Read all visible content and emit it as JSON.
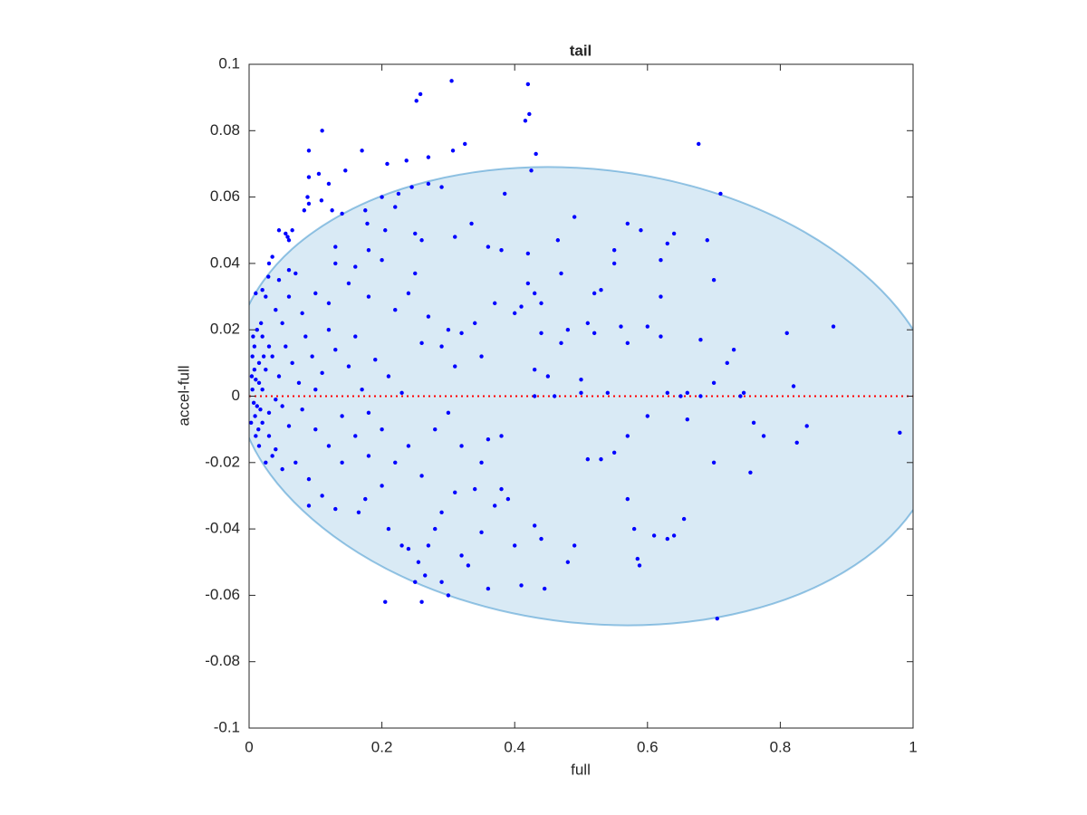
{
  "chart_data": {
    "type": "scatter",
    "title": "tail",
    "xlabel": "full",
    "ylabel": "accel-full",
    "xlim": [
      0,
      1
    ],
    "ylim": [
      -0.1,
      0.1
    ],
    "xticks": [
      0,
      0.2,
      0.4,
      0.6,
      0.8,
      1
    ],
    "yticks": [
      -0.1,
      -0.08,
      -0.06,
      -0.04,
      -0.02,
      0,
      0.02,
      0.04,
      0.06,
      0.08,
      0.1
    ],
    "region": {
      "color": "#0072bd",
      "x": [
        1.04,
        0.988,
        0.877,
        0.723,
        0.543,
        0.359,
        0.193,
        0.065,
        -0.009,
        -0.02,
        0.032,
        0.143,
        0.297,
        0.477,
        0.661,
        0.827,
        0.955,
        1.029
      ],
      "y": [
        0,
        0.0236,
        0.0444,
        0.0598,
        0.068,
        0.068,
        0.0598,
        0.0444,
        0.0236,
        0,
        -0.0236,
        -0.0444,
        -0.0598,
        -0.068,
        -0.068,
        -0.0598,
        -0.0444,
        -0.0236
      ]
    },
    "reference_line": {
      "y": 0,
      "color": "#ff0000"
    },
    "series": [
      {
        "color": "#0000ff",
        "x": [
          0.305,
          0.258,
          0.252,
          0.42,
          0.422,
          0.416,
          0.11,
          0.09,
          0.17,
          0.307,
          0.325,
          0.677,
          0.432,
          0.237,
          0.208,
          0.27,
          0.145,
          0.105,
          0.09,
          0.425,
          0.12,
          0.27,
          0.29,
          0.245,
          0.225,
          0.385,
          0.088,
          0.09,
          0.71,
          0.083,
          0.109,
          0.125,
          0.14,
          0.065,
          0.045,
          0.055,
          0.058,
          0.06,
          0.035,
          0.03,
          0.029,
          0.02,
          0.01,
          0.175,
          0.2,
          0.178,
          0.205,
          0.25,
          0.31,
          0.335,
          0.49,
          0.22,
          0.26,
          0.64,
          0.57,
          0.59,
          0.69,
          0.62,
          0.63,
          0.465,
          0.38,
          0.36,
          0.42,
          0.55,
          0.7,
          0.62,
          0.42,
          0.41,
          0.37,
          0.43,
          0.44,
          0.52,
          0.53,
          0.4,
          0.47,
          0.55,
          0.6,
          0.51,
          0.52,
          0.56,
          0.57,
          0.62,
          0.47,
          0.48,
          0.44,
          0.43,
          0.45,
          0.5,
          0.35,
          0.32,
          0.34,
          0.3,
          0.29,
          0.31,
          0.26,
          0.27,
          0.24,
          0.25,
          0.22,
          0.2,
          0.18,
          0.16,
          0.15,
          0.13,
          0.12,
          0.1,
          0.08,
          0.07,
          0.06,
          0.05,
          0.04,
          0.03,
          0.02,
          0.015,
          0.01,
          0.005,
          0.012,
          0.02,
          0.03,
          0.025,
          0.035,
          0.045,
          0.055,
          0.065,
          0.075,
          0.085,
          0.095,
          0.11,
          0.13,
          0.15,
          0.17,
          0.19,
          0.21,
          0.23,
          0.18,
          0.16,
          0.14,
          0.12,
          0.1,
          0.08,
          0.06,
          0.04,
          0.05,
          0.07,
          0.09,
          0.11,
          0.13,
          0.09,
          0.165,
          0.175,
          0.2,
          0.22,
          0.24,
          0.26,
          0.28,
          0.3,
          0.21,
          0.23,
          0.24,
          0.255,
          0.265,
          0.27,
          0.26,
          0.205,
          0.25,
          0.29,
          0.3,
          0.32,
          0.33,
          0.35,
          0.36,
          0.37,
          0.38,
          0.39,
          0.4,
          0.41,
          0.43,
          0.44,
          0.445,
          0.48,
          0.49,
          0.51,
          0.53,
          0.55,
          0.57,
          0.58,
          0.585,
          0.588,
          0.61,
          0.63,
          0.64,
          0.655,
          0.57,
          0.6,
          0.66,
          0.7,
          0.755,
          0.76,
          0.775,
          0.825,
          0.84,
          0.98,
          0.705,
          0.65,
          0.68,
          0.66,
          0.74,
          0.745,
          0.82,
          0.81,
          0.88,
          0.73,
          0.72,
          0.68,
          0.7,
          0.63,
          0.54,
          0.5,
          0.46,
          0.43,
          0.38,
          0.36,
          0.35,
          0.34,
          0.32,
          0.31,
          0.29,
          0.28,
          0.13,
          0.12,
          0.1,
          0.14,
          0.18,
          0.2,
          0.16,
          0.18,
          0.06,
          0.025,
          0.015,
          0.008,
          0.018,
          0.003,
          0.01,
          0.02,
          0.04,
          0.035,
          0.05,
          0.045,
          0.03,
          0.008,
          0.025,
          0.005,
          0.007,
          0.004,
          0.012,
          0.015,
          0.009,
          0.006,
          0.014,
          0.022,
          0.017
        ],
        "values": [
          0.095,
          0.091,
          0.089,
          0.094,
          0.085,
          0.083,
          0.08,
          0.074,
          0.074,
          0.074,
          0.076,
          0.076,
          0.073,
          0.071,
          0.07,
          0.072,
          0.068,
          0.067,
          0.066,
          0.068,
          0.064,
          0.064,
          0.063,
          0.063,
          0.061,
          0.061,
          0.06,
          0.058,
          0.061,
          0.056,
          0.059,
          0.056,
          0.055,
          0.05,
          0.05,
          0.049,
          0.048,
          0.047,
          0.042,
          0.04,
          0.036,
          0.032,
          0.031,
          0.056,
          0.06,
          0.052,
          0.05,
          0.049,
          0.048,
          0.052,
          0.054,
          0.057,
          0.047,
          0.049,
          0.052,
          0.05,
          0.047,
          0.041,
          0.046,
          0.047,
          0.044,
          0.045,
          0.043,
          0.044,
          0.035,
          0.03,
          0.034,
          0.027,
          0.028,
          0.031,
          0.028,
          0.031,
          0.032,
          0.025,
          0.037,
          0.04,
          0.021,
          0.022,
          0.019,
          0.021,
          0.016,
          0.018,
          0.016,
          0.02,
          0.019,
          0.008,
          0.006,
          0.005,
          0.012,
          0.019,
          0.022,
          0.02,
          0.015,
          0.009,
          0.016,
          0.024,
          0.031,
          0.037,
          0.026,
          0.041,
          0.044,
          0.039,
          0.034,
          0.04,
          0.028,
          0.031,
          0.025,
          0.037,
          0.03,
          0.022,
          0.026,
          0.015,
          0.018,
          0.01,
          0.005,
          0.002,
          -0.003,
          -0.008,
          -0.012,
          0.008,
          0.012,
          0.006,
          0.015,
          0.01,
          0.004,
          0.018,
          0.012,
          0.007,
          0.014,
          0.009,
          0.002,
          0.011,
          0.006,
          0.001,
          -0.005,
          -0.012,
          -0.006,
          -0.015,
          -0.01,
          -0.004,
          -0.009,
          -0.016,
          -0.003,
          -0.02,
          -0.025,
          -0.03,
          -0.034,
          -0.033,
          -0.035,
          -0.031,
          -0.027,
          -0.02,
          -0.015,
          -0.024,
          -0.01,
          -0.005,
          -0.04,
          -0.045,
          -0.046,
          -0.05,
          -0.054,
          -0.045,
          -0.062,
          -0.062,
          -0.056,
          -0.056,
          -0.06,
          -0.048,
          -0.051,
          -0.041,
          -0.058,
          -0.033,
          -0.028,
          -0.031,
          -0.045,
          -0.057,
          -0.039,
          -0.043,
          -0.058,
          -0.05,
          -0.045,
          -0.019,
          -0.019,
          -0.017,
          -0.031,
          -0.04,
          -0.049,
          -0.051,
          -0.042,
          -0.043,
          -0.042,
          -0.037,
          -0.012,
          -0.006,
          -0.007,
          -0.02,
          -0.023,
          -0.008,
          -0.012,
          -0.014,
          -0.009,
          -0.011,
          -0.067,
          0,
          0,
          0.001,
          0,
          0.001,
          0.003,
          0.019,
          0.021,
          0.014,
          0.01,
          0.017,
          0.004,
          0.001,
          0.001,
          0.001,
          0,
          0,
          -0.012,
          -0.013,
          -0.02,
          -0.028,
          -0.015,
          -0.029,
          -0.035,
          -0.04,
          0.045,
          0.02,
          0.002,
          -0.02,
          -0.018,
          -0.01,
          0.018,
          0.03,
          0.038,
          0.03,
          -0.015,
          0.015,
          0.022,
          -0.008,
          -0.012,
          0.002,
          -0.001,
          -0.018,
          -0.022,
          0.035,
          -0.005,
          0.008,
          -0.02,
          0.012,
          -0.002,
          0.006,
          0.02,
          0.004,
          -0.006,
          0.018,
          -0.01,
          0.012,
          -0.004
        ]
      }
    ]
  }
}
